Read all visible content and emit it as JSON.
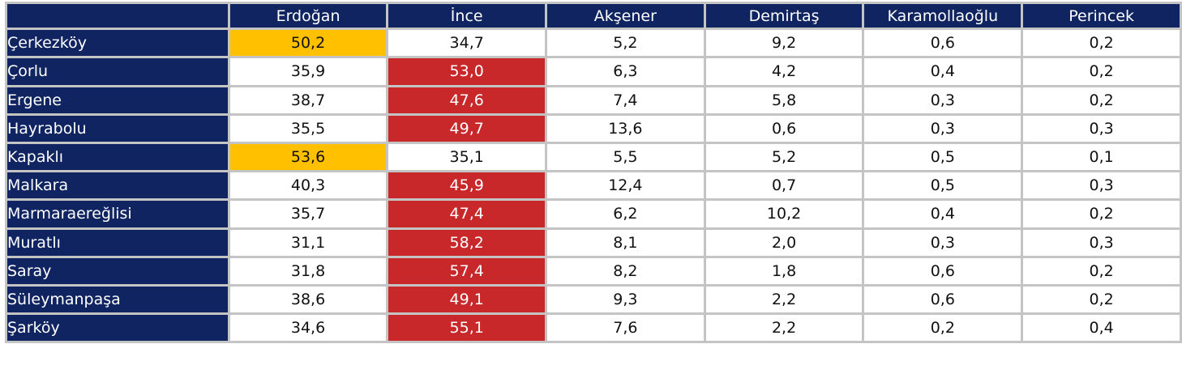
{
  "colors": {
    "header_bg": "#0f2460",
    "header_text": "#ffffff",
    "erdogan_win": "#ffc000",
    "ince_win": "#c8282a",
    "cell_bg": "#ffffff",
    "grid": "#c4c4c4"
  },
  "chart_data": {
    "type": "table",
    "columns": [
      "Erdoğan",
      "İnce",
      "Akşener",
      "Demirtaş",
      "Karamollaoğlu",
      "Perincek"
    ],
    "rows": [
      {
        "name": "Çerkezköy",
        "values": [
          "50,2",
          "34,7",
          "5,2",
          "9,2",
          "0,6",
          "0,2"
        ],
        "winner": "Erdoğan"
      },
      {
        "name": "Çorlu",
        "values": [
          "35,9",
          "53,0",
          "6,3",
          "4,2",
          "0,4",
          "0,2"
        ],
        "winner": "İnce"
      },
      {
        "name": "Ergene",
        "values": [
          "38,7",
          "47,6",
          "7,4",
          "5,8",
          "0,3",
          "0,2"
        ],
        "winner": "İnce"
      },
      {
        "name": "Hayrabolu",
        "values": [
          "35,5",
          "49,7",
          "13,6",
          "0,6",
          "0,3",
          "0,3"
        ],
        "winner": "İnce"
      },
      {
        "name": "Kapaklı",
        "values": [
          "53,6",
          "35,1",
          "5,5",
          "5,2",
          "0,5",
          "0,1"
        ],
        "winner": "Erdoğan"
      },
      {
        "name": "Malkara",
        "values": [
          "40,3",
          "45,9",
          "12,4",
          "0,7",
          "0,5",
          "0,3"
        ],
        "winner": "İnce"
      },
      {
        "name": "Marmaraereğlisi",
        "values": [
          "35,7",
          "47,4",
          "6,2",
          "10,2",
          "0,4",
          "0,2"
        ],
        "winner": "İnce"
      },
      {
        "name": "Muratlı",
        "values": [
          "31,1",
          "58,2",
          "8,1",
          "2,0",
          "0,3",
          "0,3"
        ],
        "winner": "İnce"
      },
      {
        "name": "Saray",
        "values": [
          "31,8",
          "57,4",
          "8,2",
          "1,8",
          "0,6",
          "0,2"
        ],
        "winner": "İnce"
      },
      {
        "name": "Süleymanpaşa",
        "values": [
          "38,6",
          "49,1",
          "9,3",
          "2,2",
          "0,6",
          "0,2"
        ],
        "winner": "İnce"
      },
      {
        "name": "Şarköy",
        "values": [
          "34,6",
          "55,1",
          "7,6",
          "2,2",
          "0,2",
          "0,4"
        ],
        "winner": "İnce"
      }
    ]
  }
}
